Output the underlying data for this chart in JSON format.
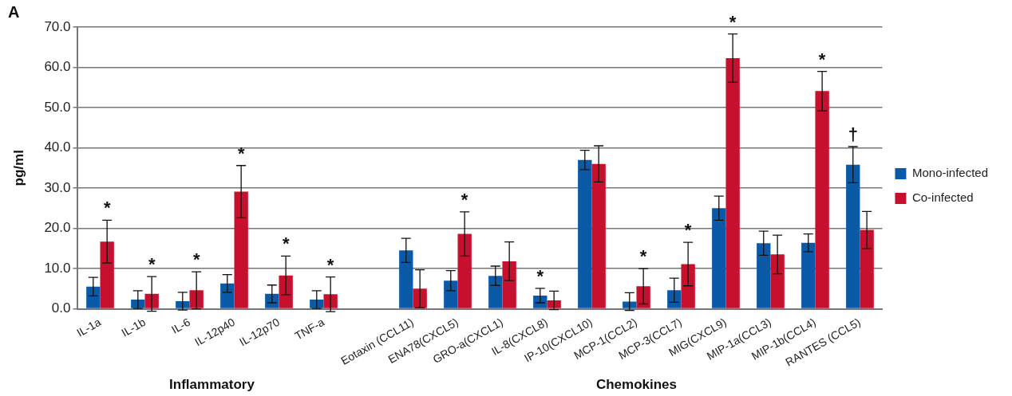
{
  "chart_data": {
    "type": "bar",
    "title": "A",
    "ylabel": "pg/ml",
    "categories": [
      "IL-1a",
      "IL-1b",
      "IL-6",
      "IL-12p40",
      "IL-12p70",
      "TNF-a",
      null,
      "Eotaxin (CCL11)",
      "ENA78(CXCL5)",
      "GRO-a(CXCL1)",
      "IL-8(CXCL8)",
      "IP-10(CXCL10)",
      "MCP-1(CCL2)",
      "MCP-3(CCL7)",
      "MIG(CXCL9)",
      "MIP-1a(CCL3)",
      "MIP-1b(CCL4)",
      "RANTES (CCL5)"
    ],
    "series": [
      {
        "name": "Mono-infected",
        "color": "#0b5aa8",
        "values": [
          5.5,
          2.3,
          1.9,
          6.3,
          3.7,
          2.3,
          null,
          14.5,
          7.0,
          8.2,
          3.3,
          37.0,
          1.8,
          4.6,
          25.0,
          16.3,
          16.4,
          35.8
        ],
        "errors": [
          2.3,
          2.2,
          2.2,
          2.2,
          2.2,
          2.2,
          null,
          3.0,
          2.5,
          2.4,
          1.8,
          2.4,
          2.2,
          3.0,
          3.0,
          3.0,
          2.2,
          4.5
        ]
      },
      {
        "name": "Co-infected",
        "color": "#c8102e",
        "values": [
          16.7,
          3.7,
          4.6,
          29.1,
          8.3,
          3.6,
          null,
          5.0,
          18.6,
          11.8,
          2.1,
          36.0,
          5.6,
          11.1,
          62.3,
          13.5,
          54.1,
          19.6
        ],
        "errors": [
          5.3,
          4.3,
          4.6,
          6.5,
          4.8,
          4.3,
          null,
          4.7,
          5.5,
          4.8,
          2.3,
          4.5,
          4.4,
          5.4,
          6.0,
          4.8,
          4.9,
          4.6
        ]
      }
    ],
    "ylim": [
      0,
      70
    ],
    "yticks": [
      {
        "value": 0,
        "label": "0.0"
      },
      {
        "value": 10,
        "label": "10.0"
      },
      {
        "value": 20,
        "label": "20.0"
      },
      {
        "value": 30,
        "label": "30.0"
      },
      {
        "value": 40,
        "label": "40.0"
      },
      {
        "value": 50,
        "label": "50.0"
      },
      {
        "value": 60,
        "label": "60.0"
      },
      {
        "value": 70,
        "label": "70.0"
      }
    ],
    "grid": "y",
    "legend": "right",
    "annotations": [
      {
        "text": "*",
        "x": "IL-1a",
        "y": 22.0
      },
      {
        "text": "*",
        "x": "IL-1b",
        "y": 8.0
      },
      {
        "text": "*",
        "x": "IL-6",
        "y": 9.2
      },
      {
        "text": "*",
        "x": "IL-12p40",
        "y": 35.6
      },
      {
        "text": "*",
        "x": "IL-12p70",
        "y": 13.1
      },
      {
        "text": "*",
        "x": "TNF-a",
        "y": 7.9
      },
      {
        "text": "*",
        "x": "ENA78(CXCL5)",
        "y": 24.1
      },
      {
        "text": "*",
        "x": "IL-8(CXCL8)",
        "y": 5.1
      },
      {
        "text": "*",
        "x": "MCP-1(CCL2)",
        "y": 10.0
      },
      {
        "text": "*",
        "x": "MCP-3(CCL7)",
        "y": 16.5
      },
      {
        "text": "*",
        "x": "MIG(CXCL9)",
        "y": 68.3
      },
      {
        "text": "*",
        "x": "MIP-1b(CCL4)",
        "y": 59.0
      },
      {
        "text": "†",
        "x": "RANTES (CCL5)",
        "y": 40.3
      },
      "Inflammatory",
      "Chemokines"
    ]
  }
}
